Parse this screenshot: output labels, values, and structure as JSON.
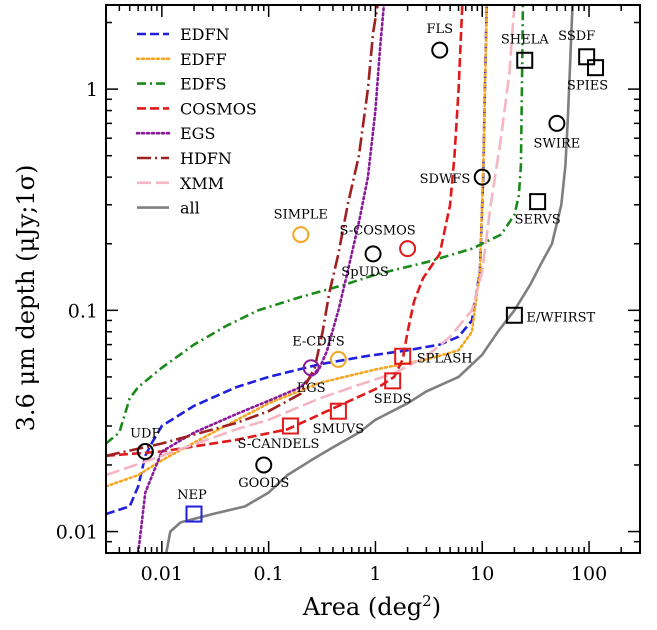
{
  "chart_data": {
    "type": "line",
    "title": "",
    "xlabel": "Area (deg",
    "xlabel_sup": "2",
    "xlabel_tail": ")",
    "ylabel": "3.6 μm depth (μJy;1σ)",
    "xscale": "log",
    "yscale": "log",
    "xlim": [
      0.003,
      300
    ],
    "ylim": [
      0.008,
      2.4
    ],
    "grid": false,
    "legend_position": "top-left",
    "x_ticks": [
      {
        "value": 0.01,
        "label": "0.01"
      },
      {
        "value": 0.1,
        "label": "0.1"
      },
      {
        "value": 1,
        "label": "1"
      },
      {
        "value": 10,
        "label": "10"
      },
      {
        "value": 100,
        "label": "100"
      }
    ],
    "y_ticks": [
      {
        "value": 0.01,
        "label": "0.01"
      },
      {
        "value": 0.1,
        "label": "0.1"
      },
      {
        "value": 1,
        "label": "1"
      }
    ],
    "series": [
      {
        "name": "EDFN",
        "color": "#1f1fe0",
        "dash": "dashed",
        "points": [
          [
            0.003,
            0.012
          ],
          [
            0.005,
            0.013
          ],
          [
            0.006,
            0.016
          ],
          [
            0.007,
            0.022
          ],
          [
            0.008,
            0.025
          ],
          [
            0.01,
            0.03
          ],
          [
            0.02,
            0.037
          ],
          [
            0.05,
            0.045
          ],
          [
            0.1,
            0.05
          ],
          [
            0.3,
            0.057
          ],
          [
            0.8,
            0.062
          ],
          [
            2,
            0.066
          ],
          [
            4,
            0.07
          ],
          [
            6,
            0.076
          ],
          [
            8,
            0.09
          ],
          [
            9.5,
            0.15
          ],
          [
            10.2,
            0.4
          ],
          [
            10.6,
            1.0
          ],
          [
            11,
            2.4
          ]
        ]
      },
      {
        "name": "EDFF",
        "color": "#f5a623",
        "dash": "dotted",
        "points": [
          [
            0.003,
            0.016
          ],
          [
            0.006,
            0.018
          ],
          [
            0.01,
            0.021
          ],
          [
            0.03,
            0.028
          ],
          [
            0.1,
            0.038
          ],
          [
            0.3,
            0.047
          ],
          [
            1,
            0.054
          ],
          [
            3,
            0.06
          ],
          [
            6,
            0.066
          ],
          [
            8,
            0.08
          ],
          [
            9.5,
            0.15
          ],
          [
            10.3,
            0.5
          ],
          [
            11,
            2.4
          ]
        ]
      },
      {
        "name": "EDFS",
        "color": "#1a8a1a",
        "dash": "dashdot",
        "points": [
          [
            0.003,
            0.025
          ],
          [
            0.004,
            0.028
          ],
          [
            0.005,
            0.04
          ],
          [
            0.006,
            0.045
          ],
          [
            0.01,
            0.055
          ],
          [
            0.02,
            0.07
          ],
          [
            0.04,
            0.085
          ],
          [
            0.08,
            0.1
          ],
          [
            0.2,
            0.115
          ],
          [
            0.5,
            0.13
          ],
          [
            1,
            0.145
          ],
          [
            3,
            0.165
          ],
          [
            8,
            0.19
          ],
          [
            15,
            0.22
          ],
          [
            20,
            0.27
          ],
          [
            22,
            0.33
          ],
          [
            23,
            0.45
          ],
          [
            23.5,
            1.0
          ],
          [
            24,
            2.4
          ]
        ]
      },
      {
        "name": "COSMOS",
        "color": "#e01a1a",
        "dash": "dashed",
        "points": [
          [
            0.003,
            0.022
          ],
          [
            0.01,
            0.023
          ],
          [
            0.05,
            0.026
          ],
          [
            0.15,
            0.029
          ],
          [
            0.4,
            0.036
          ],
          [
            1,
            0.044
          ],
          [
            1.5,
            0.05
          ],
          [
            1.8,
            0.06
          ],
          [
            2,
            0.08
          ],
          [
            2.3,
            0.11
          ],
          [
            2.8,
            0.14
          ],
          [
            4,
            0.18
          ],
          [
            5,
            0.3
          ],
          [
            5.5,
            0.5
          ],
          [
            6,
            1.0
          ],
          [
            6.5,
            2.4
          ]
        ]
      },
      {
        "name": "EGS",
        "color": "#8a1a9a",
        "dash": "dotted",
        "points": [
          [
            0.006,
            0.008
          ],
          [
            0.007,
            0.015
          ],
          [
            0.01,
            0.023
          ],
          [
            0.02,
            0.028
          ],
          [
            0.05,
            0.034
          ],
          [
            0.1,
            0.039
          ],
          [
            0.2,
            0.045
          ],
          [
            0.3,
            0.055
          ],
          [
            0.35,
            0.065
          ],
          [
            0.45,
            0.1
          ],
          [
            0.55,
            0.15
          ],
          [
            0.7,
            0.25
          ],
          [
            0.85,
            0.4
          ],
          [
            1.0,
            0.8
          ],
          [
            1.1,
            1.5
          ],
          [
            1.2,
            2.4
          ]
        ]
      },
      {
        "name": "HDFN",
        "color": "#a02020",
        "dash": "longdashdot",
        "points": [
          [
            0.003,
            0.022
          ],
          [
            0.01,
            0.025
          ],
          [
            0.05,
            0.031
          ],
          [
            0.1,
            0.035
          ],
          [
            0.2,
            0.042
          ],
          [
            0.27,
            0.055
          ],
          [
            0.32,
            0.08
          ],
          [
            0.37,
            0.12
          ],
          [
            0.45,
            0.18
          ],
          [
            0.55,
            0.3
          ],
          [
            0.7,
            0.5
          ],
          [
            0.85,
            1.0
          ],
          [
            0.95,
            1.8
          ],
          [
            1.05,
            2.4
          ]
        ]
      },
      {
        "name": "XMM",
        "color": "#f4b6c2",
        "dash": "longdash",
        "points": [
          [
            0.003,
            0.018
          ],
          [
            0.01,
            0.022
          ],
          [
            0.05,
            0.029
          ],
          [
            0.1,
            0.032
          ],
          [
            0.3,
            0.04
          ],
          [
            0.7,
            0.046
          ],
          [
            1.5,
            0.052
          ],
          [
            3,
            0.062
          ],
          [
            5,
            0.076
          ],
          [
            8,
            0.1
          ],
          [
            10,
            0.15
          ],
          [
            12,
            0.3
          ],
          [
            15,
            0.6
          ],
          [
            18,
            1.2
          ],
          [
            20,
            2.4
          ]
        ]
      },
      {
        "name": "all",
        "color": "#7f7f7f",
        "dash": "solid",
        "points": [
          [
            0.011,
            0.008
          ],
          [
            0.012,
            0.01
          ],
          [
            0.015,
            0.011
          ],
          [
            0.03,
            0.012
          ],
          [
            0.06,
            0.013
          ],
          [
            0.1,
            0.015
          ],
          [
            0.15,
            0.018
          ],
          [
            0.25,
            0.021
          ],
          [
            0.4,
            0.024
          ],
          [
            0.7,
            0.028
          ],
          [
            1,
            0.032
          ],
          [
            2,
            0.038
          ],
          [
            3,
            0.043
          ],
          [
            6,
            0.05
          ],
          [
            10,
            0.063
          ],
          [
            14,
            0.08
          ],
          [
            20,
            0.1
          ],
          [
            28,
            0.13
          ],
          [
            35,
            0.16
          ],
          [
            45,
            0.2
          ],
          [
            55,
            0.3
          ],
          [
            60,
            0.45
          ],
          [
            63,
            0.7
          ],
          [
            66,
            1.2
          ],
          [
            70,
            2.4
          ]
        ]
      }
    ],
    "markers": [
      {
        "label": "UDF",
        "x": 0.007,
        "y": 0.023,
        "shape": "circle",
        "color": "#000000",
        "label_dx": 0,
        "label_dy": -14,
        "anchor": "middle"
      },
      {
        "label": "NEP",
        "x": 0.02,
        "y": 0.012,
        "shape": "square",
        "color": "#1f1fe0",
        "label_dx": -2,
        "label_dy": -15,
        "anchor": "middle"
      },
      {
        "label": "GOODS",
        "x": 0.09,
        "y": 0.02,
        "shape": "circle",
        "color": "#000000",
        "label_dx": 0,
        "label_dy": 22,
        "anchor": "middle"
      },
      {
        "label": "S-CANDELS",
        "x": 0.16,
        "y": 0.03,
        "shape": "square",
        "color": "#e01a1a",
        "label_dx": -12,
        "label_dy": 22,
        "anchor": "middle"
      },
      {
        "label": "SMUVS",
        "x": 0.45,
        "y": 0.035,
        "shape": "square",
        "color": "#e01a1a",
        "label_dx": 0,
        "label_dy": 22,
        "anchor": "middle"
      },
      {
        "label": "EGS",
        "x": 0.25,
        "y": 0.055,
        "shape": "circle",
        "color": "#8a1a9a",
        "label_dx": 0,
        "label_dy": 24,
        "anchor": "middle"
      },
      {
        "label": "E-CDFS",
        "x": 0.45,
        "y": 0.06,
        "shape": "circle",
        "color": "#f5a623",
        "label_dx": -20,
        "label_dy": -14,
        "anchor": "middle"
      },
      {
        "label": "SEDS",
        "x": 1.45,
        "y": 0.048,
        "shape": "square",
        "color": "#e01a1a",
        "label_dx": 0,
        "label_dy": 22,
        "anchor": "middle"
      },
      {
        "label": "SPLASH",
        "x": 1.8,
        "y": 0.062,
        "shape": "square",
        "color": "#e01a1a",
        "label_dx": 14,
        "label_dy": 6,
        "anchor": "start"
      },
      {
        "label": "SpUDS",
        "x": 0.95,
        "y": 0.18,
        "shape": "circle",
        "color": "#000000",
        "label_dx": -8,
        "label_dy": 22,
        "anchor": "middle"
      },
      {
        "label": "SIMPLE",
        "x": 0.2,
        "y": 0.22,
        "shape": "circle",
        "color": "#f5a623",
        "label_dx": 0,
        "label_dy": -16,
        "anchor": "middle"
      },
      {
        "label": "S-COSMOS",
        "x": 2.0,
        "y": 0.19,
        "shape": "circle",
        "color": "#e01a1a",
        "label_dx": -30,
        "label_dy": -14,
        "anchor": "middle"
      },
      {
        "label": "SDWFS",
        "x": 10,
        "y": 0.4,
        "shape": "circle",
        "color": "#000000",
        "label_dx": -12,
        "label_dy": 6,
        "anchor": "end"
      },
      {
        "label": "FLS",
        "x": 4,
        "y": 1.5,
        "shape": "circle",
        "color": "#000000",
        "label_dx": 0,
        "label_dy": -17,
        "anchor": "middle"
      },
      {
        "label": "SHELA",
        "x": 25,
        "y": 1.35,
        "shape": "square",
        "color": "#000000",
        "label_dx": 0,
        "label_dy": -17,
        "anchor": "middle"
      },
      {
        "label": "SERVS",
        "x": 33,
        "y": 0.31,
        "shape": "square",
        "color": "#000000",
        "label_dx": 0,
        "label_dy": 22,
        "anchor": "middle"
      },
      {
        "label": "SWIRE",
        "x": 50,
        "y": 0.7,
        "shape": "circle",
        "color": "#000000",
        "label_dx": 0,
        "label_dy": 24,
        "anchor": "middle"
      },
      {
        "label": "SSDF",
        "x": 95,
        "y": 1.4,
        "shape": "square",
        "color": "#000000",
        "label_dx": -10,
        "label_dy": -17,
        "anchor": "middle"
      },
      {
        "label": "SPIES",
        "x": 115,
        "y": 1.25,
        "shape": "square",
        "color": "#000000",
        "label_dx": -8,
        "label_dy": 22,
        "anchor": "middle"
      },
      {
        "label": "E/WFIRST",
        "x": 20,
        "y": 0.095,
        "shape": "square",
        "color": "#000000",
        "label_dx": 12,
        "label_dy": 6,
        "anchor": "start"
      }
    ]
  }
}
